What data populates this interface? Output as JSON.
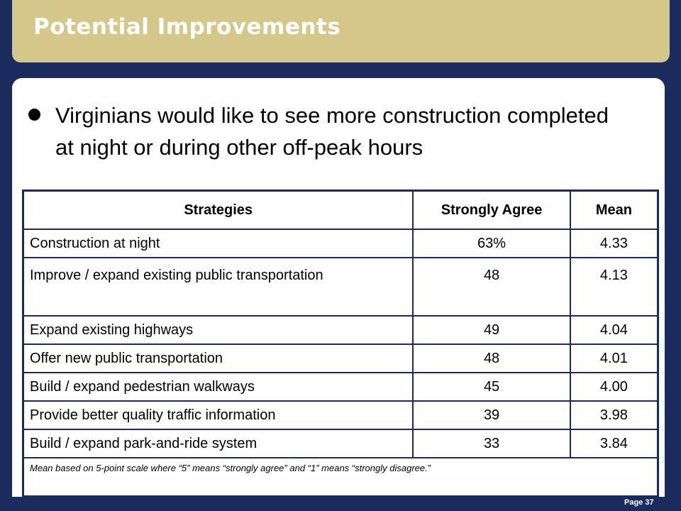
{
  "slide": {
    "title": "Potential Improvements",
    "bullet": "Virginians would like to see more construction completed at night or during other off-peak hours",
    "page": "Page 37"
  },
  "table": {
    "headers": [
      "Strategies",
      "Strongly Agree",
      "Mean"
    ],
    "rows": [
      {
        "strategy": "Construction at night",
        "agree": "63%",
        "mean": "4.33"
      },
      {
        "strategy": "Improve / expand existing public transportation",
        "agree": "48",
        "mean": "4.13"
      },
      {
        "strategy": "Expand existing highways",
        "agree": "49",
        "mean": "4.04"
      },
      {
        "strategy": "Offer new public transportation",
        "agree": "48",
        "mean": "4.01"
      },
      {
        "strategy": "Build / expand pedestrian walkways",
        "agree": "45",
        "mean": "4.00"
      },
      {
        "strategy": "Provide better quality traffic information",
        "agree": "39",
        "mean": "3.98"
      },
      {
        "strategy": "Build / expand park-and-ride system",
        "agree": "33",
        "mean": "3.84"
      }
    ],
    "footnote": "Mean based on 5-point scale where “5” means “strongly agree” and “1” means “strongly disagree.”"
  },
  "colors": {
    "background": "#1a2b5e",
    "title_bar": "#d5c68a",
    "panel": "#ffffff"
  }
}
